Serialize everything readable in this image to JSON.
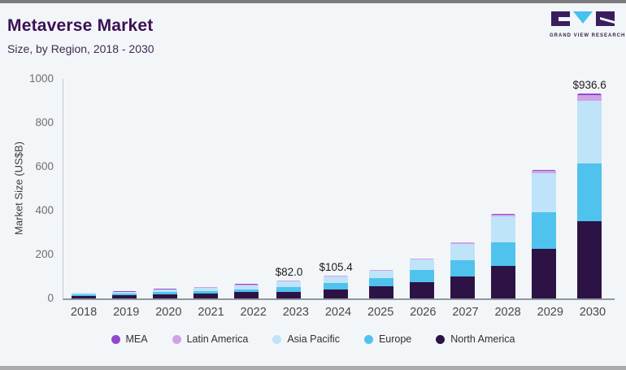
{
  "header": {
    "title": "Metaverse Market",
    "subtitle": "Size, by Region, 2018 - 2030"
  },
  "logo": {
    "text": "GRAND VIEW RESEARCH",
    "dark_color": "#3a1d5d",
    "accent_color": "#45c2f0"
  },
  "chart_data": {
    "type": "bar",
    "stacked": true,
    "title": "Metaverse Market Size, by Region, 2018 - 2030",
    "ylabel": "Market Size (US$B)",
    "xlabel": "",
    "ylim": [
      0,
      1000
    ],
    "yticks": [
      0,
      200,
      400,
      600,
      800,
      1000
    ],
    "grid": false,
    "legend_position": "bottom",
    "categories": [
      "2018",
      "2019",
      "2020",
      "2021",
      "2022",
      "2023",
      "2024",
      "2025",
      "2026",
      "2027",
      "2028",
      "2029",
      "2030"
    ],
    "series": [
      {
        "name": "North America",
        "color": "#2d1345",
        "values": [
          12,
          14,
          19,
          23,
          28,
          30,
          40,
          57,
          75,
          101,
          147,
          226,
          353
        ]
      },
      {
        "name": "Europe",
        "color": "#4fc3ee",
        "values": [
          6,
          7,
          9.5,
          12,
          14.5,
          22,
          29,
          34,
          55,
          73,
          110,
          166,
          264
        ]
      },
      {
        "name": "Asia Pacific",
        "color": "#bfe3f8",
        "values": [
          7.5,
          9,
          12,
          15,
          18.5,
          25,
          31,
          35,
          47,
          76,
          118,
          180,
          285
        ]
      },
      {
        "name": "Latin America",
        "color": "#cfa3e8",
        "values": [
          1,
          1.5,
          2,
          2.2,
          3,
          3.5,
          3.9,
          4,
          4,
          5,
          7,
          10,
          26
        ]
      },
      {
        "name": "MEA",
        "color": "#9447cf",
        "values": [
          0.5,
          0.5,
          0.5,
          0.8,
          1.5,
          1.5,
          1.5,
          1,
          1,
          1,
          2,
          3,
          8.6
        ]
      }
    ],
    "legend_order": [
      "MEA",
      "Latin America",
      "Asia Pacific",
      "Europe",
      "North America"
    ],
    "totals_shown": [
      {
        "category": "2023",
        "label": "$82.0"
      },
      {
        "category": "2024",
        "label": "$105.4"
      },
      {
        "category": "2030",
        "label": "$936.6"
      }
    ]
  }
}
